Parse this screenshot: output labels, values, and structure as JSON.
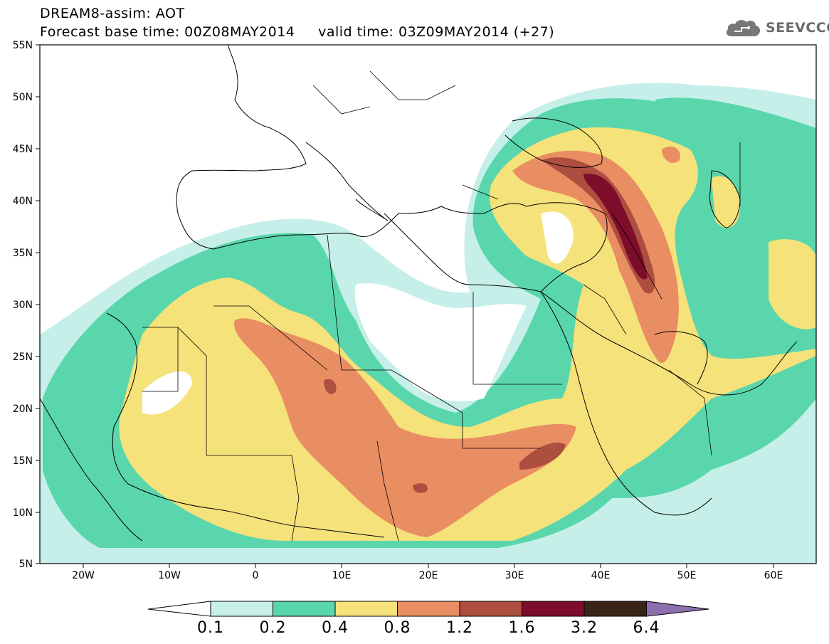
{
  "header": {
    "line1": "DREAM8-assim: AOT",
    "line2": "Forecast base time: 00Z08MAY2014     valid time: 03Z09MAY2014 (+27)"
  },
  "logo": {
    "icon": "cloud-icon",
    "text": "SEEVCCC"
  },
  "map": {
    "projection": "lat-lon",
    "lon_range": [
      -25,
      65
    ],
    "lat_range": [
      5,
      55
    ],
    "lat_labels": [
      "55N",
      "50N",
      "45N",
      "40N",
      "35N",
      "30N",
      "25N",
      "20N",
      "15N",
      "10N",
      "5N"
    ],
    "lon_labels": [
      "20W",
      "10W",
      "0",
      "10E",
      "20E",
      "30E",
      "40E",
      "50E",
      "60E"
    ],
    "field": "Aerosol optical thickness (AOT)"
  },
  "colorbar": {
    "labels": [
      "0.1",
      "0.2",
      "0.4",
      "0.8",
      "1.2",
      "1.6",
      "3.2",
      "6.4"
    ],
    "colors": [
      "#ffffff",
      "#c6efe9",
      "#5ad6ad",
      "#f6e27a",
      "#e98e63",
      "#ad4f40",
      "#7d0d2a",
      "#3a2418",
      "#8c6fae"
    ]
  }
}
